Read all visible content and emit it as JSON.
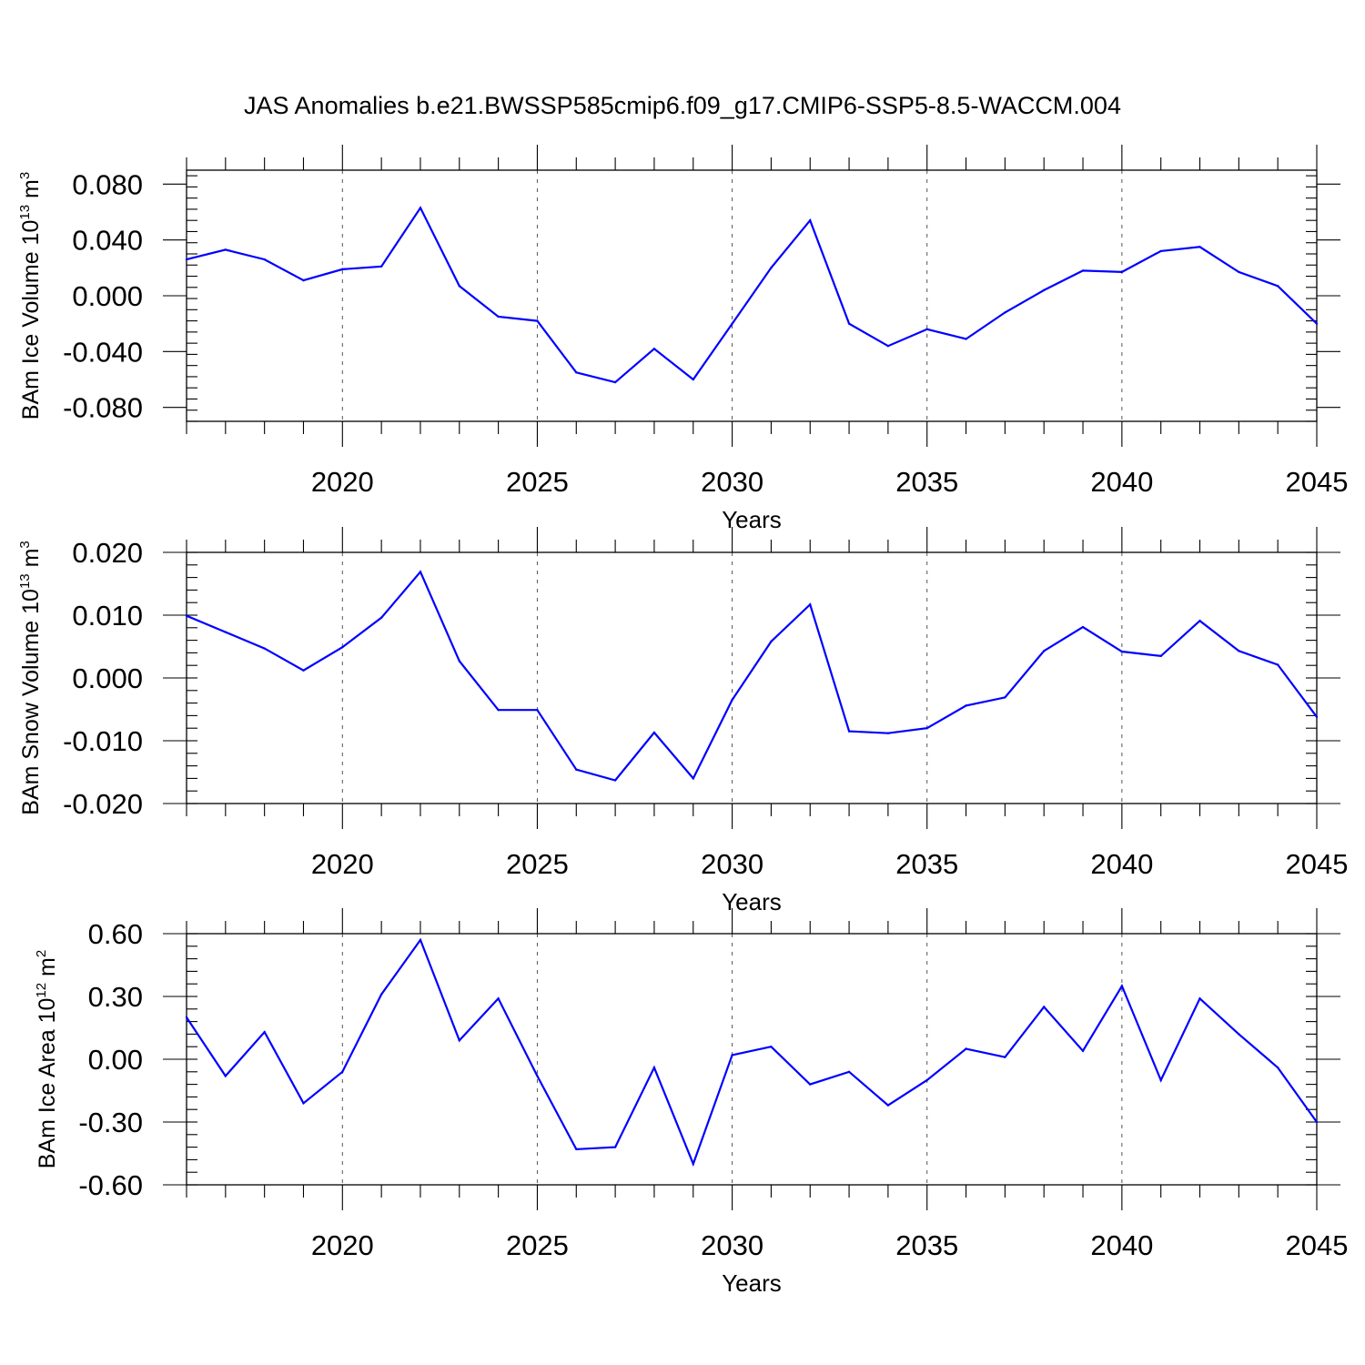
{
  "title": "JAS Anomalies b.e21.BWSSP585cmip6.f09_g17.CMIP6-SSP5-8.5-WACCM.004",
  "colors": {
    "line": "#0000ff",
    "axis": "#000000"
  },
  "chart_data": [
    {
      "type": "line",
      "ylabel": {
        "prefix": "BAm Ice Volume 10",
        "exponent": "13",
        "unit": " m",
        "unit_exponent": "3"
      },
      "xlabel": "Years",
      "xlim": [
        2016,
        2045
      ],
      "ylim": [
        -0.09,
        0.09
      ],
      "yticks": [
        0.08,
        0.04,
        0.0,
        -0.04,
        -0.08
      ],
      "ytick_labels": [
        "0.080",
        "0.040",
        "0.000",
        "-0.040",
        "-0.080"
      ],
      "xticks": [
        2020,
        2025,
        2030,
        2035,
        2040,
        2045
      ],
      "xtick_labels": [
        "2020",
        "2025",
        "2030",
        "2035",
        "2040",
        "2045"
      ],
      "grid": "vertical dashed at labeled years",
      "x": [
        2016,
        2017,
        2018,
        2019,
        2020,
        2021,
        2022,
        2023,
        2024,
        2025,
        2026,
        2027,
        2028,
        2029,
        2030,
        2031,
        2032,
        2033,
        2034,
        2035,
        2036,
        2037,
        2038,
        2039,
        2040,
        2041,
        2042,
        2043,
        2044,
        2045
      ],
      "values": [
        0.026,
        0.033,
        0.026,
        0.011,
        0.019,
        0.021,
        0.063,
        0.007,
        -0.015,
        -0.018,
        -0.055,
        -0.062,
        -0.038,
        -0.06,
        -0.02,
        0.02,
        0.054,
        -0.02,
        -0.036,
        -0.024,
        -0.031,
        -0.012,
        0.004,
        0.018,
        0.017,
        0.032,
        0.035,
        0.017,
        0.007,
        -0.02
      ]
    },
    {
      "type": "line",
      "ylabel": {
        "prefix": "BAm Snow Volume 10",
        "exponent": "13",
        "unit": " m",
        "unit_exponent": "3"
      },
      "xlabel": "Years",
      "xlim": [
        2016,
        2045
      ],
      "ylim": [
        -0.02,
        0.02
      ],
      "yticks": [
        0.02,
        0.01,
        0.0,
        -0.01,
        -0.02
      ],
      "ytick_labels": [
        "0.020",
        "0.010",
        "0.000",
        "-0.010",
        "-0.020"
      ],
      "xticks": [
        2020,
        2025,
        2030,
        2035,
        2040,
        2045
      ],
      "xtick_labels": [
        "2020",
        "2025",
        "2030",
        "2035",
        "2040",
        "2045"
      ],
      "grid": "vertical dashed at labeled years",
      "x": [
        2016,
        2017,
        2018,
        2019,
        2020,
        2021,
        2022,
        2023,
        2024,
        2025,
        2026,
        2027,
        2028,
        2029,
        2030,
        2031,
        2032,
        2033,
        2034,
        2035,
        2036,
        2037,
        2038,
        2039,
        2040,
        2041,
        2042,
        2043,
        2044,
        2045
      ],
      "values": [
        0.0099,
        0.0073,
        0.0047,
        0.0012,
        0.0049,
        0.0096,
        0.0169,
        0.0027,
        -0.0051,
        -0.0051,
        -0.0146,
        -0.0163,
        -0.0087,
        -0.016,
        -0.0035,
        0.0058,
        0.0117,
        -0.0085,
        -0.0088,
        -0.008,
        -0.0044,
        -0.0031,
        0.0043,
        0.0081,
        0.0042,
        0.0035,
        0.0091,
        0.0043,
        0.0021,
        -0.0062
      ]
    },
    {
      "type": "line",
      "ylabel": {
        "prefix": "BAm Ice Area 10",
        "exponent": "12",
        "unit": " m",
        "unit_exponent": "2"
      },
      "xlabel": "Years",
      "xlim": [
        2016,
        2045
      ],
      "ylim": [
        -0.6,
        0.6
      ],
      "yticks": [
        0.6,
        0.3,
        0.0,
        -0.3,
        -0.6
      ],
      "ytick_labels": [
        "0.60",
        "0.30",
        "0.00",
        "-0.30",
        "-0.60"
      ],
      "xticks": [
        2020,
        2025,
        2030,
        2035,
        2040,
        2045
      ],
      "xtick_labels": [
        "2020",
        "2025",
        "2030",
        "2035",
        "2040",
        "2045"
      ],
      "grid": "vertical dashed at labeled years",
      "x": [
        2016,
        2017,
        2018,
        2019,
        2020,
        2021,
        2022,
        2023,
        2024,
        2025,
        2026,
        2027,
        2028,
        2029,
        2030,
        2031,
        2032,
        2033,
        2034,
        2035,
        2036,
        2037,
        2038,
        2039,
        2040,
        2041,
        2042,
        2043,
        2044,
        2045
      ],
      "values": [
        0.2,
        -0.08,
        0.13,
        -0.21,
        -0.06,
        0.31,
        0.57,
        0.09,
        0.29,
        -0.08,
        -0.43,
        -0.42,
        -0.04,
        -0.5,
        0.02,
        0.06,
        -0.12,
        -0.06,
        -0.22,
        -0.1,
        0.05,
        0.01,
        0.25,
        0.04,
        0.35,
        -0.1,
        0.29,
        0.12,
        -0.04,
        -0.3
      ]
    }
  ]
}
